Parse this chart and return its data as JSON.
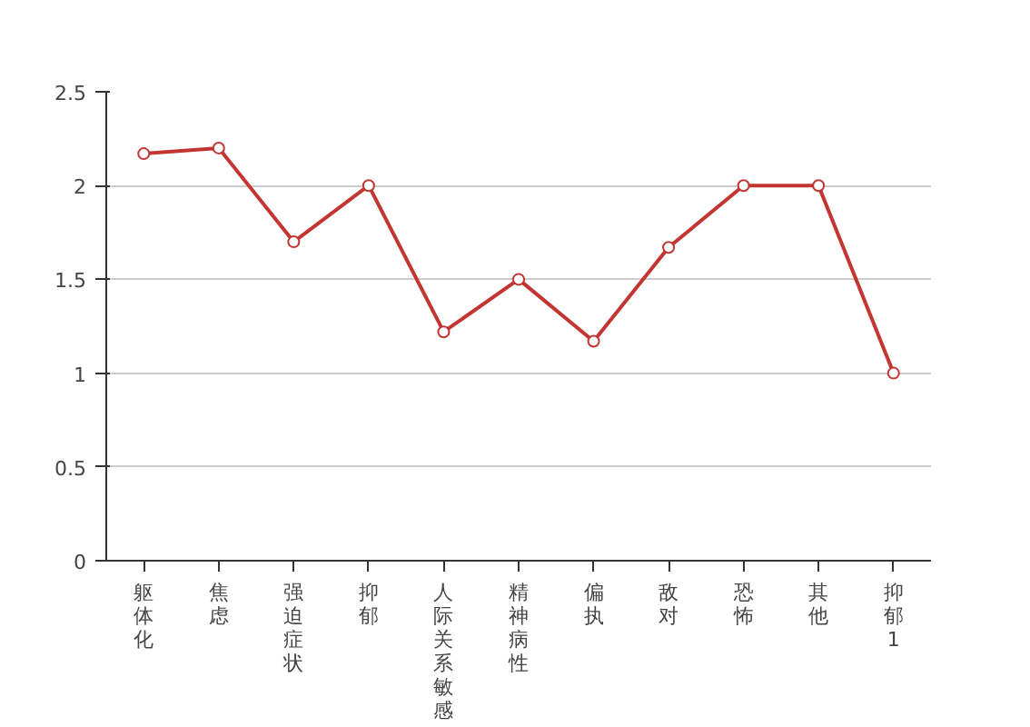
{
  "chart_data": {
    "type": "line",
    "categories": [
      "躯体化",
      "焦虑",
      "强迫症状",
      "抑郁",
      "人际关系敏感",
      "精神病性",
      "偏执",
      "敌对",
      "恐怖",
      "其他",
      "抑郁1"
    ],
    "series": [
      {
        "color": "#c23531",
        "values": [
          2.17,
          2.2,
          1.7,
          2,
          1.22,
          1.5,
          1.17,
          1.67,
          2,
          2,
          1
        ]
      }
    ],
    "ylim": [
      0,
      2.5
    ],
    "yticks": [
      0,
      0.5,
      1,
      1.5,
      2,
      2.5
    ],
    "grid": "y",
    "marker": "circle",
    "line_style": "solid"
  }
}
